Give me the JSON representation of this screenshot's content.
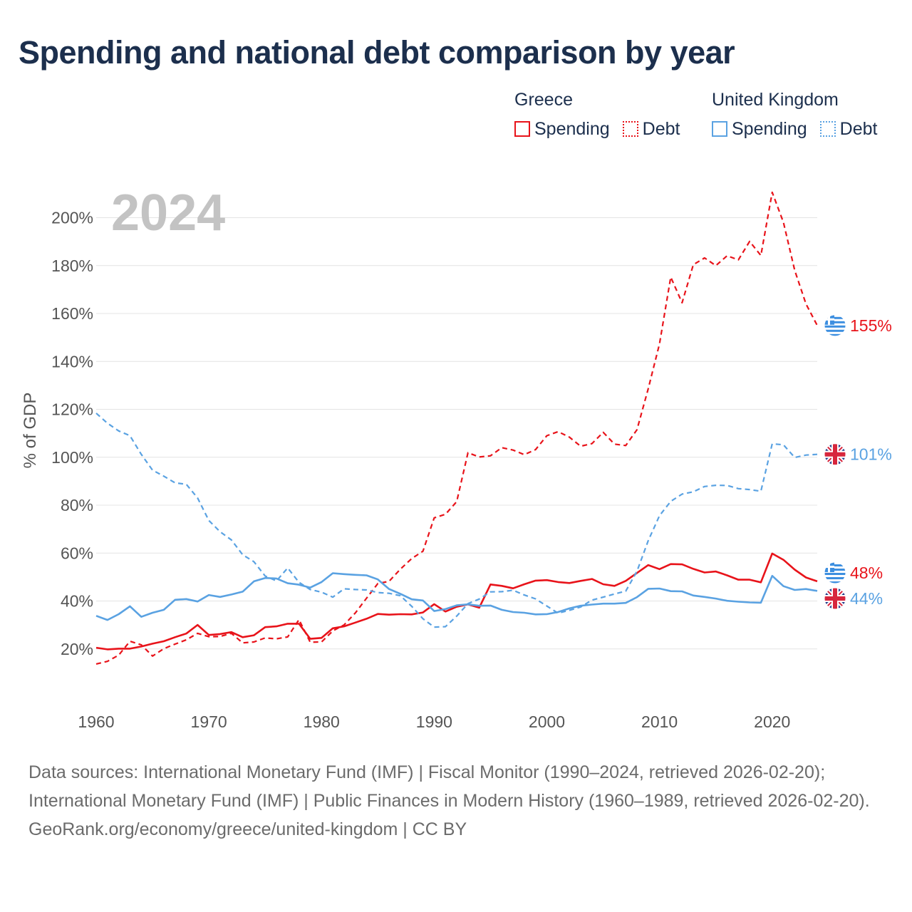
{
  "page": {
    "title": "Spending and national debt comparison by year",
    "year_watermark": "2024",
    "footer": {
      "sources": "Data sources: International Monetary Fund (IMF) | Fiscal Monitor (1990–2024, retrieved 2026-02-20); International Monetary Fund (IMF) | Public Finances in Modern History (1960–1989, retrieved 2026-02-20).",
      "credit": "GeoRank.org/economy/greece/united-kingdom | CC BY"
    }
  },
  "legend": {
    "greece": {
      "heading": "Greece",
      "spending": "Spending",
      "debt": "Debt",
      "color": "#e8131a"
    },
    "uk": {
      "heading": "United Kingdom",
      "spending": "Spending",
      "debt": "Debt",
      "color": "#5aa2e2"
    }
  },
  "chart_data": {
    "type": "line",
    "title": "Spending and national debt comparison by year",
    "ylabel": "% of GDP",
    "xlabel": "",
    "xlim": [
      1960,
      2024
    ],
    "ylim": [
      0,
      210
    ],
    "grid": true,
    "x_ticks": [
      1960,
      1970,
      1980,
      1990,
      2000,
      2010,
      2020
    ],
    "y_ticks": [
      20,
      40,
      60,
      80,
      100,
      120,
      140,
      160,
      180,
      200
    ],
    "x": [
      1960,
      1961,
      1962,
      1963,
      1964,
      1965,
      1966,
      1967,
      1968,
      1969,
      1970,
      1971,
      1972,
      1973,
      1974,
      1975,
      1976,
      1977,
      1978,
      1979,
      1980,
      1981,
      1982,
      1983,
      1984,
      1985,
      1986,
      1987,
      1988,
      1989,
      1990,
      1991,
      1992,
      1993,
      1994,
      1995,
      1996,
      1997,
      1998,
      1999,
      2000,
      2001,
      2002,
      2003,
      2004,
      2005,
      2006,
      2007,
      2008,
      2009,
      2010,
      2011,
      2012,
      2013,
      2014,
      2015,
      2016,
      2017,
      2018,
      2019,
      2020,
      2021,
      2022,
      2023,
      2024
    ],
    "series": [
      {
        "name": "Greece Spending",
        "country": "Greece",
        "metric": "Spending",
        "style": "solid",
        "color": "#e8131a",
        "end_label": "48%",
        "values": [
          20.5,
          19.8,
          20.1,
          20.1,
          21.0,
          22.2,
          23.2,
          24.9,
          26.4,
          30.0,
          25.8,
          26.2,
          27.0,
          24.9,
          25.7,
          29.1,
          29.4,
          30.5,
          30.5,
          24.2,
          24.6,
          28.6,
          29.4,
          31.0,
          32.6,
          34.6,
          34.3,
          34.5,
          34.4,
          35.2,
          38.7,
          35.6,
          37.6,
          38.6,
          37.2,
          46.9,
          46.3,
          45.3,
          47.0,
          48.5,
          48.7,
          47.9,
          47.5,
          48.4,
          49.2,
          47.0,
          46.3,
          48.4,
          51.7,
          55.0,
          53.3,
          55.4,
          55.3,
          53.4,
          51.9,
          52.3,
          50.7,
          48.9,
          48.9,
          47.8,
          59.8,
          57.2,
          53.1,
          49.8,
          48.2
        ]
      },
      {
        "name": "Greece Debt",
        "country": "Greece",
        "metric": "Debt",
        "style": "dashed",
        "color": "#e8131a",
        "end_label": "155%",
        "values": [
          13.7,
          14.8,
          17.4,
          23.2,
          21.7,
          17.0,
          20.1,
          22.0,
          23.8,
          26.5,
          25.1,
          25.2,
          26.5,
          22.5,
          22.9,
          24.6,
          24.2,
          25.0,
          32.2,
          22.8,
          22.9,
          27.5,
          30.0,
          35.0,
          41.2,
          47.3,
          48.2,
          53.3,
          57.7,
          60.8,
          74.7,
          76.2,
          81.5,
          101.9,
          100.1,
          100.6,
          104.0,
          103.0,
          101.1,
          103.2,
          109.0,
          110.7,
          108.4,
          104.6,
          105.7,
          110.4,
          105.5,
          104.9,
          111.5,
          128.6,
          147.3,
          175.2,
          164.5,
          180.4,
          183.2,
          180.0,
          184.1,
          182.4,
          190.1,
          184.2,
          210.6,
          198.0,
          178.0,
          164.0,
          155.0
        ]
      },
      {
        "name": "United Kingdom Spending",
        "country": "United Kingdom",
        "metric": "Spending",
        "style": "solid",
        "color": "#5aa2e2",
        "end_label": "44%",
        "values": [
          33.8,
          32.1,
          34.5,
          37.8,
          33.4,
          35.1,
          36.3,
          40.5,
          40.8,
          39.8,
          42.5,
          41.7,
          42.7,
          43.9,
          48.2,
          49.6,
          49.4,
          47.4,
          46.8,
          45.6,
          47.9,
          51.6,
          51.2,
          50.9,
          50.7,
          49.0,
          45.0,
          43.0,
          40.7,
          40.2,
          35.8,
          36.6,
          38.2,
          38.6,
          38.0,
          38.1,
          36.3,
          35.4,
          35.1,
          34.4,
          34.5,
          35.4,
          36.9,
          38.0,
          38.5,
          38.9,
          38.9,
          39.2,
          41.6,
          45.1,
          45.2,
          44.1,
          44.0,
          42.3,
          41.7,
          41.0,
          40.1,
          39.7,
          39.4,
          39.3,
          50.5,
          46.2,
          44.6,
          45.0,
          44.2
        ]
      },
      {
        "name": "United Kingdom Debt",
        "country": "United Kingdom",
        "metric": "Debt",
        "style": "dashed",
        "color": "#5aa2e2",
        "end_label": "101%",
        "values": [
          118.4,
          114.2,
          111.0,
          109.0,
          101.2,
          94.6,
          92.1,
          89.3,
          88.7,
          83.0,
          73.6,
          68.9,
          65.5,
          59.3,
          56.4,
          50.4,
          48.4,
          53.8,
          47.8,
          44.8,
          43.7,
          41.6,
          45.1,
          44.8,
          44.6,
          43.5,
          43.2,
          42.2,
          37.8,
          32.6,
          29.1,
          29.3,
          33.7,
          38.9,
          40.8,
          43.8,
          43.9,
          44.5,
          42.5,
          40.9,
          37.9,
          34.9,
          36.1,
          37.5,
          40.4,
          41.6,
          42.9,
          44.1,
          52.4,
          65.2,
          75.6,
          81.6,
          84.6,
          85.6,
          87.8,
          88.3,
          88.2,
          86.9,
          86.5,
          85.8,
          105.6,
          105.2,
          99.9,
          100.9,
          101.2
        ]
      }
    ]
  }
}
